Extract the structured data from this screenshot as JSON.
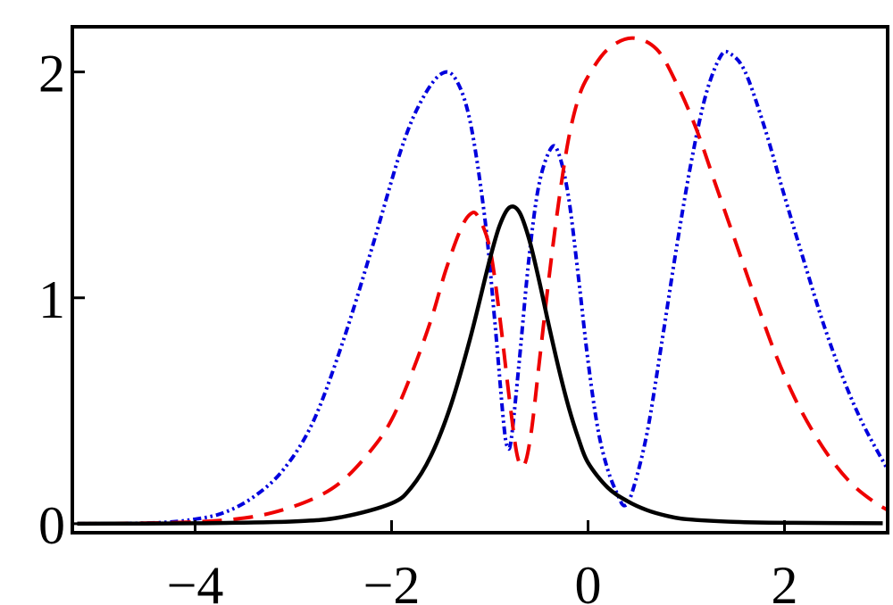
{
  "chart_data": {
    "type": "line",
    "title": "",
    "xlabel": "",
    "ylabel": "",
    "xlim": [
      -5.25,
      3.05
    ],
    "ylim": [
      -0.04,
      2.2
    ],
    "grid": false,
    "legend": "none",
    "x_ticks": [
      {
        "value": -4,
        "label": "−4"
      },
      {
        "value": -2,
        "label": "−2"
      },
      {
        "value": 0,
        "label": "0"
      },
      {
        "value": 2,
        "label": "2"
      }
    ],
    "y_ticks": [
      {
        "value": 0,
        "label": "0"
      },
      {
        "value": 1,
        "label": "1"
      },
      {
        "value": 2,
        "label": "2"
      }
    ],
    "series": [
      {
        "style": "solid",
        "color": "#000000",
        "points": [
          [
            -5.2,
            0.0
          ],
          [
            -4.0,
            0.002
          ],
          [
            -3.0,
            0.01
          ],
          [
            -2.5,
            0.03
          ],
          [
            -2.0,
            0.09
          ],
          [
            -1.8,
            0.16
          ],
          [
            -1.6,
            0.3
          ],
          [
            -1.4,
            0.52
          ],
          [
            -1.2,
            0.82
          ],
          [
            -1.0,
            1.17
          ],
          [
            -0.9,
            1.32
          ],
          [
            -0.8,
            1.4
          ],
          [
            -0.7,
            1.38
          ],
          [
            -0.6,
            1.26
          ],
          [
            -0.5,
            1.08
          ],
          [
            -0.4,
            0.88
          ],
          [
            -0.3,
            0.69
          ],
          [
            -0.2,
            0.52
          ],
          [
            -0.1,
            0.38
          ],
          [
            0.0,
            0.27
          ],
          [
            0.2,
            0.16
          ],
          [
            0.4,
            0.1
          ],
          [
            0.6,
            0.06
          ],
          [
            0.8,
            0.035
          ],
          [
            1.0,
            0.02
          ],
          [
            1.5,
            0.008
          ],
          [
            2.0,
            0.004
          ],
          [
            3.0,
            0.002
          ]
        ]
      },
      {
        "style": "dashed",
        "color": "#ee0000",
        "points": [
          [
            -5.2,
            0.0
          ],
          [
            -4.2,
            0.005
          ],
          [
            -3.6,
            0.02
          ],
          [
            -3.2,
            0.05
          ],
          [
            -2.8,
            0.11
          ],
          [
            -2.5,
            0.19
          ],
          [
            -2.2,
            0.33
          ],
          [
            -2.0,
            0.46
          ],
          [
            -1.8,
            0.66
          ],
          [
            -1.6,
            0.9
          ],
          [
            -1.45,
            1.12
          ],
          [
            -1.3,
            1.3
          ],
          [
            -1.2,
            1.37
          ],
          [
            -1.12,
            1.36
          ],
          [
            -1.0,
            1.22
          ],
          [
            -0.9,
            0.92
          ],
          [
            -0.8,
            0.55
          ],
          [
            -0.72,
            0.3
          ],
          [
            -0.65,
            0.26
          ],
          [
            -0.58,
            0.4
          ],
          [
            -0.5,
            0.7
          ],
          [
            -0.4,
            1.08
          ],
          [
            -0.3,
            1.42
          ],
          [
            -0.2,
            1.7
          ],
          [
            -0.1,
            1.88
          ],
          [
            0.0,
            1.98
          ],
          [
            0.2,
            2.1
          ],
          [
            0.45,
            2.15
          ],
          [
            0.7,
            2.1
          ],
          [
            0.9,
            1.95
          ],
          [
            1.1,
            1.75
          ],
          [
            1.3,
            1.5
          ],
          [
            1.5,
            1.25
          ],
          [
            1.7,
            1.0
          ],
          [
            1.9,
            0.76
          ],
          [
            2.1,
            0.56
          ],
          [
            2.3,
            0.4
          ],
          [
            2.5,
            0.27
          ],
          [
            2.7,
            0.17
          ],
          [
            2.9,
            0.1
          ],
          [
            3.05,
            0.06
          ]
        ]
      },
      {
        "style": "dashdot",
        "color": "#0000dd",
        "points": [
          [
            -5.2,
            0.0
          ],
          [
            -4.4,
            0.004
          ],
          [
            -4.0,
            0.02
          ],
          [
            -3.7,
            0.05
          ],
          [
            -3.4,
            0.12
          ],
          [
            -3.1,
            0.24
          ],
          [
            -2.8,
            0.45
          ],
          [
            -2.5,
            0.8
          ],
          [
            -2.2,
            1.22
          ],
          [
            -1.9,
            1.66
          ],
          [
            -1.7,
            1.87
          ],
          [
            -1.5,
            1.99
          ],
          [
            -1.35,
            1.97
          ],
          [
            -1.2,
            1.78
          ],
          [
            -1.05,
            1.35
          ],
          [
            -0.95,
            0.9
          ],
          [
            -0.86,
            0.45
          ],
          [
            -0.82,
            0.34
          ],
          [
            -0.78,
            0.38
          ],
          [
            -0.7,
            0.72
          ],
          [
            -0.6,
            1.18
          ],
          [
            -0.5,
            1.5
          ],
          [
            -0.38,
            1.66
          ],
          [
            -0.3,
            1.64
          ],
          [
            -0.2,
            1.45
          ],
          [
            -0.1,
            1.1
          ],
          [
            0.0,
            0.72
          ],
          [
            0.1,
            0.42
          ],
          [
            0.2,
            0.24
          ],
          [
            0.3,
            0.13
          ],
          [
            0.37,
            0.08
          ],
          [
            0.45,
            0.14
          ],
          [
            0.6,
            0.4
          ],
          [
            0.75,
            0.8
          ],
          [
            0.9,
            1.22
          ],
          [
            1.05,
            1.6
          ],
          [
            1.2,
            1.9
          ],
          [
            1.35,
            2.07
          ],
          [
            1.45,
            2.08
          ],
          [
            1.6,
            2.0
          ],
          [
            1.8,
            1.75
          ],
          [
            2.0,
            1.45
          ],
          [
            2.2,
            1.16
          ],
          [
            2.4,
            0.88
          ],
          [
            2.6,
            0.64
          ],
          [
            2.8,
            0.44
          ],
          [
            3.05,
            0.24
          ]
        ]
      }
    ]
  }
}
